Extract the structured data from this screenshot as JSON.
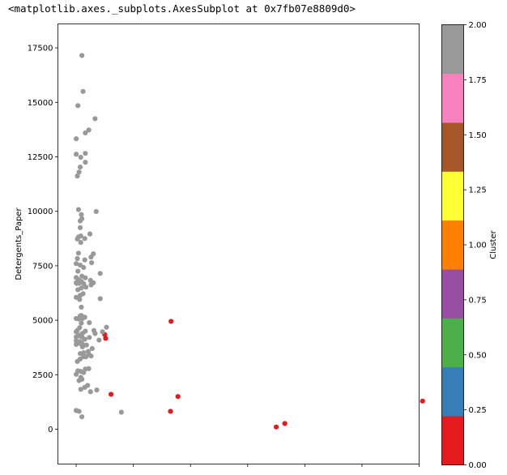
{
  "output_label": "<matplotlib.axes._subplots.AxesSubplot at 0x7fb07e8809d0>",
  "chart_data": {
    "type": "scatter",
    "title": "",
    "xlabel": "",
    "ylabel": "Detergents_Paper",
    "ylim": [
      -1600,
      18600
    ],
    "xlim": [
      -3200,
      60000
    ],
    "yticks": [
      0,
      2500,
      5000,
      7500,
      10000,
      12500,
      15000,
      17500
    ],
    "ytick_labels": [
      "0",
      "2500",
      "5000",
      "7500",
      "10000",
      "12500",
      "15000",
      "17500"
    ],
    "xticks": [
      0,
      10000,
      20000,
      30000,
      40000,
      50000,
      60000
    ],
    "xtick_labels": [
      "",
      "",
      "",
      "",
      "",
      "",
      ""
    ],
    "grid": false,
    "colors": {
      "cluster_0": "#e41a1c",
      "cluster_2": "#999999"
    },
    "colorbar": {
      "label": "Cluster",
      "min": 0.0,
      "max": 2.0,
      "ticks": [
        0.0,
        0.25,
        0.5,
        0.75,
        1.0,
        1.25,
        1.5,
        1.75,
        2.0
      ],
      "tick_labels": [
        "0.00",
        "0.25",
        "0.50",
        "0.75",
        "1.00",
        "1.25",
        "1.50",
        "1.75",
        "2.00"
      ],
      "bands": [
        "#e41a1c",
        "#377eb8",
        "#4daf4a",
        "#984ea3",
        "#ff7f00",
        "#ffff33",
        "#a65628",
        "#f781bf",
        "#999999"
      ]
    },
    "series": [
      {
        "cluster": 0,
        "points": [
          [
            5000,
            4340
          ],
          [
            5150,
            4170
          ],
          [
            6100,
            1600
          ],
          [
            16600,
            4950
          ],
          [
            16500,
            820
          ],
          [
            17800,
            1500
          ],
          [
            35000,
            100
          ],
          [
            36500,
            260
          ],
          [
            60600,
            1290
          ]
        ]
      },
      {
        "cluster": 2,
        "points": [
          [
            1000,
            17150
          ],
          [
            1200,
            15500
          ],
          [
            300,
            14850
          ],
          [
            3300,
            14250
          ],
          [
            2200,
            13730
          ],
          [
            1600,
            13600
          ],
          [
            0,
            13330
          ],
          [
            0,
            12620
          ],
          [
            1600,
            12660
          ],
          [
            800,
            12480
          ],
          [
            1600,
            12250
          ],
          [
            700,
            12030
          ],
          [
            500,
            11800
          ],
          [
            200,
            11620
          ],
          [
            400,
            10080
          ],
          [
            3500,
            9990
          ],
          [
            900,
            9850
          ],
          [
            1000,
            9660
          ],
          [
            700,
            9560
          ],
          [
            700,
            9250
          ],
          [
            2400,
            8960
          ],
          [
            800,
            8870
          ],
          [
            400,
            8820
          ],
          [
            200,
            8730
          ],
          [
            1500,
            8750
          ],
          [
            800,
            8570
          ],
          [
            3000,
            8050
          ],
          [
            400,
            8080
          ],
          [
            2600,
            7900
          ],
          [
            200,
            7830
          ],
          [
            1500,
            7770
          ],
          [
            2700,
            7640
          ],
          [
            0,
            7600
          ],
          [
            700,
            7530
          ],
          [
            1300,
            7420
          ],
          [
            300,
            7250
          ],
          [
            4200,
            7150
          ],
          [
            1000,
            7020
          ],
          [
            0,
            6960
          ],
          [
            1600,
            6950
          ],
          [
            400,
            6850
          ],
          [
            2500,
            6830
          ],
          [
            900,
            6780
          ],
          [
            3000,
            6720
          ],
          [
            0,
            6720
          ],
          [
            100,
            6690
          ],
          [
            500,
            6700
          ],
          [
            1300,
            6680
          ],
          [
            2600,
            6620
          ],
          [
            1700,
            6520
          ],
          [
            900,
            6480
          ],
          [
            300,
            6400
          ],
          [
            1200,
            6220
          ],
          [
            700,
            6140
          ],
          [
            0,
            6050
          ],
          [
            4200,
            5990
          ],
          [
            600,
            5950
          ],
          [
            900,
            5600
          ],
          [
            900,
            5220
          ],
          [
            700,
            5200
          ],
          [
            1500,
            5140
          ],
          [
            0,
            5080
          ],
          [
            400,
            5060
          ],
          [
            1100,
            5080
          ],
          [
            2300,
            4890
          ],
          [
            900,
            4870
          ],
          [
            5300,
            4680
          ],
          [
            600,
            4660
          ],
          [
            200,
            4530
          ],
          [
            0,
            4470
          ],
          [
            3100,
            4530
          ],
          [
            1600,
            4500
          ],
          [
            3300,
            4390
          ],
          [
            4600,
            4470
          ],
          [
            1100,
            4400
          ],
          [
            400,
            4320
          ],
          [
            700,
            4270
          ],
          [
            1000,
            4230
          ],
          [
            0,
            4230
          ],
          [
            2300,
            4210
          ],
          [
            1500,
            4130
          ],
          [
            4000,
            4090
          ],
          [
            0,
            4060
          ],
          [
            600,
            4020
          ],
          [
            900,
            3980
          ],
          [
            200,
            3940
          ],
          [
            800,
            3920
          ],
          [
            1100,
            3900
          ],
          [
            0,
            3890
          ],
          [
            1800,
            3860
          ],
          [
            1100,
            3780
          ],
          [
            2800,
            3700
          ],
          [
            2100,
            3570
          ],
          [
            1300,
            3510
          ],
          [
            700,
            3470
          ],
          [
            2200,
            3440
          ],
          [
            2600,
            3360
          ],
          [
            1300,
            3330
          ],
          [
            1700,
            3320
          ],
          [
            700,
            3220
          ],
          [
            200,
            3110
          ],
          [
            2200,
            2780
          ],
          [
            1600,
            2760
          ],
          [
            300,
            2680
          ],
          [
            800,
            2650
          ],
          [
            1300,
            2600
          ],
          [
            0,
            2520
          ],
          [
            800,
            2380
          ],
          [
            1000,
            2290
          ],
          [
            500,
            2230
          ],
          [
            2000,
            2010
          ],
          [
            1500,
            1920
          ],
          [
            800,
            1830
          ],
          [
            3600,
            1800
          ],
          [
            2500,
            1720
          ],
          [
            0,
            860
          ],
          [
            500,
            820
          ],
          [
            7900,
            780
          ],
          [
            1000,
            570
          ]
        ]
      }
    ]
  }
}
